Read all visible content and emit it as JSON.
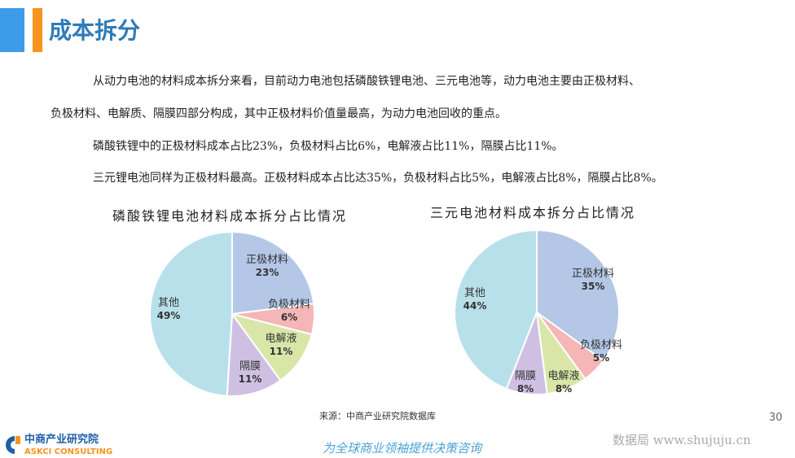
{
  "header": {
    "title": "成本拆分",
    "accent_blue": "#3d9be9",
    "accent_orange": "#f7941d"
  },
  "paragraphs": [
    "从动力电池的材料成本拆分来看，目前动力电池包括磷酸铁锂电池、三元电池等，动力电池主要由正极材料、",
    "负极材料、电解质、隔膜四部分构成，其中正极材料价值量最高，为动力电池回收的重点。",
    "磷酸铁锂中的正极材料成本占比23%，负极材料占比6%，电解液占比11%，隔膜占比11%。",
    "三元锂电池同样为正极材料最高。正极材料成本占比达35%，负极材料占比5%，电解液占比8%，隔膜占比8%。"
  ],
  "chart_data": [
    {
      "type": "pie",
      "title": "磷酸铁锂电池材料成本拆分占比情况",
      "categories": [
        "正极材料",
        "负极材料",
        "电解液",
        "隔膜",
        "其他"
      ],
      "values": [
        23,
        6,
        11,
        11,
        49
      ],
      "labels": [
        "23%",
        "6%",
        "11%",
        "11%",
        "49%"
      ],
      "colors": [
        "#b4c7e7",
        "#f4b6b6",
        "#d9e6a8",
        "#cfc0e3",
        "#b8e0ea"
      ]
    },
    {
      "type": "pie",
      "title": "三元电池材料成本拆分占比情况",
      "categories": [
        "正极材料",
        "负极材料",
        "电解液",
        "隔膜",
        "其他"
      ],
      "values": [
        35,
        5,
        8,
        8,
        44
      ],
      "labels": [
        "35%",
        "5%",
        "8%",
        "8%",
        "44%"
      ],
      "colors": [
        "#b4c7e7",
        "#f4b6b6",
        "#d9e6a8",
        "#cfc0e3",
        "#b8e0ea"
      ]
    }
  ],
  "footer": {
    "source": "来源：中商产业研究院数据库",
    "slogan": "为全球商业领袖提供决策咨询",
    "logo_cn": "中商产业研究院",
    "logo_en": "ASKCI CONSULTING",
    "watermark": "数据局 www.shujuju.cn",
    "page": "30"
  }
}
